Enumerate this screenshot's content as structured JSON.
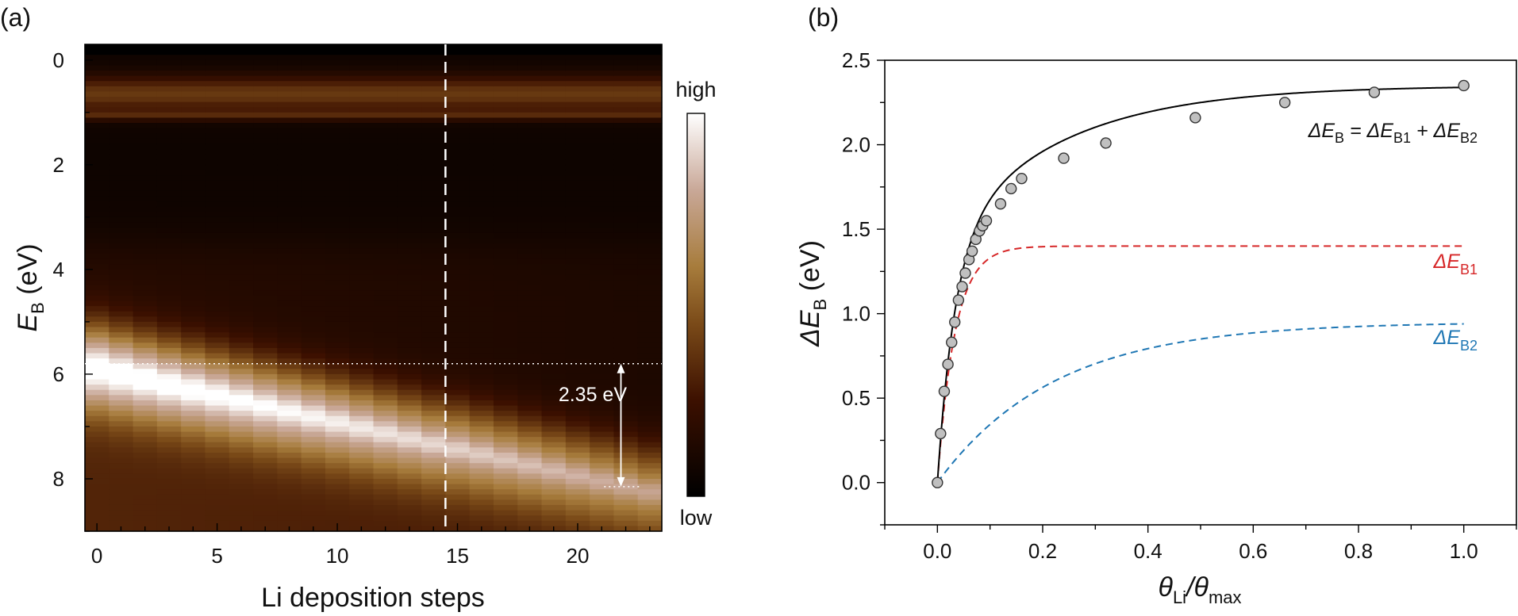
{
  "panel_a": {
    "label": "(a)",
    "cb_high": "high",
    "cb_low": "low",
    "annotation": "2.35 eV",
    "xlabel": "Li deposition steps",
    "ylabel_main": "E",
    "ylabel_sub": "B",
    "ylabel_unit": " (eV)"
  },
  "panel_b": {
    "label": "(b)",
    "xlabel_t1": "θ",
    "xlabel_s1": "Li",
    "xlabel_t2": "/θ",
    "xlabel_s2": "max",
    "ylabel_main": "ΔE",
    "ylabel_sub": "B",
    "ylabel_unit": " (eV)",
    "eq_p1": "ΔE",
    "eq_s1": "B",
    "eq_p2": " = ΔE",
    "eq_s2": "B1",
    "eq_p3": " + ΔE",
    "eq_s3": "B2",
    "b1_main": "ΔE",
    "b1_sub": "B1",
    "b2_main": "ΔE",
    "b2_sub": "B2"
  },
  "colors": {
    "fit": "#000000",
    "b1": "#d62728",
    "b2": "#1f77b4",
    "marker_fill": "#c0c0c0"
  },
  "chart_data": [
    {
      "type": "heatmap",
      "title": "(a)",
      "xlabel": "Li deposition steps",
      "ylabel": "E_B (eV)",
      "xlim": [
        -0.5,
        23.5
      ],
      "ylim": [
        9,
        -0.3
      ],
      "xticks": [
        0,
        5,
        10,
        15,
        20
      ],
      "yticks": [
        0,
        2,
        4,
        6,
        8
      ],
      "colorbar": {
        "high_label": "high",
        "low_label": "low"
      },
      "steps": 24,
      "bands": [
        {
          "name": "peak-1eV",
          "eb_start": 1.05,
          "eb_shift": 0.0
        },
        {
          "name": "main-peak",
          "eb_start": 5.9,
          "eb_shift": 2.35
        }
      ],
      "dashed_vertical_at_step": 14.5,
      "dotted_horizontal_eb": [
        5.8,
        8.15
      ],
      "annotation": {
        "text": "2.35 eV",
        "eb_from": 5.8,
        "eb_to": 8.15
      }
    },
    {
      "type": "scatter",
      "title": "(b)",
      "xlabel": "θ_Li/θ_max",
      "ylabel": "ΔE_B (eV)",
      "xlim": [
        -0.1,
        1.1
      ],
      "ylim": [
        -0.25,
        2.5
      ],
      "xticks": [
        0.0,
        0.2,
        0.4,
        0.6,
        0.8,
        1.0
      ],
      "yticks": [
        0.0,
        0.5,
        1.0,
        1.5,
        2.0,
        2.5
      ],
      "x": [
        0.0,
        0.006,
        0.013,
        0.02,
        0.027,
        0.033,
        0.04,
        0.047,
        0.053,
        0.06,
        0.066,
        0.073,
        0.08,
        0.086,
        0.093,
        0.12,
        0.14,
        0.16,
        0.24,
        0.32,
        0.49,
        0.66,
        0.83,
        1.0
      ],
      "y": [
        0.0,
        0.29,
        0.54,
        0.7,
        0.83,
        0.95,
        1.08,
        1.16,
        1.24,
        1.32,
        1.37,
        1.44,
        1.49,
        1.52,
        1.55,
        1.65,
        1.74,
        1.8,
        1.92,
        2.01,
        2.16,
        2.25,
        2.31,
        2.35
      ],
      "series": [
        {
          "name": "ΔE_B = ΔE_B1 + ΔE_B2",
          "style": "solid",
          "A1": 1.4,
          "k1": 30,
          "A2": 0.95,
          "k2": 4.5
        },
        {
          "name": "ΔE_B1",
          "style": "dashed",
          "A": 1.4,
          "k": 30
        },
        {
          "name": "ΔE_B2",
          "style": "dashed",
          "A": 0.95,
          "k": 4.5
        }
      ]
    }
  ]
}
